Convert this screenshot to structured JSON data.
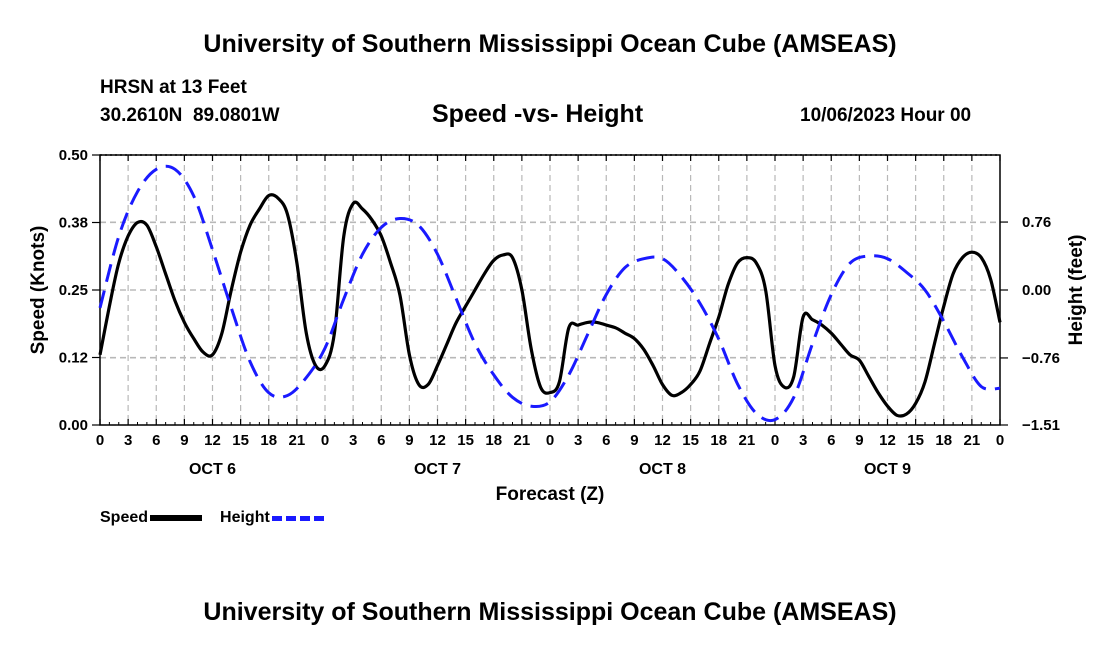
{
  "header": {
    "title": "University of Southern Mississippi Ocean Cube (AMSEAS)",
    "station": "HRSN at 13 Feet",
    "lat": "30.2610N",
    "lon": "89.0801W",
    "chart_title": "Speed -vs- Height",
    "date": "10/06/2023 Hour 00"
  },
  "footer": {
    "title": "University of Southern Mississippi Ocean Cube (AMSEAS)"
  },
  "legend": {
    "speed_label": "Speed",
    "height_label": "Height"
  },
  "colors": {
    "speed": "#000000",
    "height": "#1a1aff",
    "grid": "#b8b8b8"
  },
  "chart_data": {
    "type": "line",
    "title": "Speed -vs- Height",
    "xlabel": "Forecast (Z)",
    "ylabel": "Speed (Knots)",
    "y2label": "Height (feet)",
    "xlim": [
      0,
      96
    ],
    "ylim": [
      0,
      0.5
    ],
    "y2lim": [
      -1.51,
      1.51
    ],
    "x_tick_labels": [
      "0",
      "3",
      "6",
      "9",
      "12",
      "15",
      "18",
      "21",
      "0",
      "3",
      "6",
      "9",
      "12",
      "15",
      "18",
      "21",
      "0",
      "3",
      "6",
      "9",
      "12",
      "15",
      "18",
      "21",
      "0",
      "3",
      "6",
      "9",
      "12",
      "15",
      "18",
      "21",
      "0"
    ],
    "day_labels": [
      {
        "label": "OCT 6",
        "x": 12
      },
      {
        "label": "OCT 7",
        "x": 36
      },
      {
        "label": "OCT 8",
        "x": 60
      },
      {
        "label": "OCT 9",
        "x": 84
      }
    ],
    "y_ticks": [
      0.0,
      0.125,
      0.25,
      0.375,
      0.5
    ],
    "y_tick_labels": [
      "0.00",
      "0.12",
      "0.25",
      "0.38",
      "0.50"
    ],
    "y2_ticks": [
      0.76,
      0.0,
      -0.76,
      -1.51
    ],
    "y2_tick_labels": [
      "0.76",
      "0.00",
      "−0.76",
      "−1.51"
    ],
    "grid": true,
    "legend_position": "bottom-left",
    "series": [
      {
        "name": "Speed",
        "axis": "left",
        "style": "solid",
        "x": [
          0,
          1,
          2,
          3,
          4,
          5,
          6,
          7,
          8,
          9,
          10,
          11,
          12,
          13,
          14,
          15,
          16,
          17,
          18,
          19,
          20,
          21,
          22,
          23,
          24,
          25,
          26,
          27,
          28,
          29,
          30,
          31,
          32,
          33,
          34,
          35,
          36,
          37,
          38,
          39,
          40,
          41,
          42,
          43,
          44,
          45,
          46,
          47,
          48,
          49,
          50,
          51,
          52,
          53,
          54,
          55,
          56,
          57,
          58,
          59,
          60,
          61,
          62,
          63,
          64,
          65,
          66,
          67,
          68,
          69,
          70,
          71,
          72,
          73,
          74,
          75,
          76,
          77,
          78,
          79,
          80,
          81,
          82,
          83,
          84,
          85,
          86,
          87,
          88,
          89,
          90,
          91,
          92,
          93,
          94,
          95,
          96
        ],
        "values": [
          0.13,
          0.22,
          0.3,
          0.35,
          0.375,
          0.37,
          0.33,
          0.28,
          0.23,
          0.19,
          0.16,
          0.135,
          0.13,
          0.17,
          0.25,
          0.32,
          0.37,
          0.4,
          0.425,
          0.42,
          0.39,
          0.3,
          0.17,
          0.11,
          0.11,
          0.17,
          0.35,
          0.41,
          0.4,
          0.38,
          0.35,
          0.3,
          0.24,
          0.13,
          0.075,
          0.075,
          0.11,
          0.15,
          0.19,
          0.22,
          0.25,
          0.28,
          0.305,
          0.315,
          0.31,
          0.25,
          0.14,
          0.07,
          0.06,
          0.08,
          0.18,
          0.185,
          0.19,
          0.19,
          0.185,
          0.18,
          0.17,
          0.16,
          0.14,
          0.11,
          0.075,
          0.055,
          0.06,
          0.075,
          0.1,
          0.15,
          0.2,
          0.26,
          0.3,
          0.31,
          0.3,
          0.25,
          0.11,
          0.07,
          0.09,
          0.2,
          0.195,
          0.185,
          0.17,
          0.15,
          0.13,
          0.12,
          0.09,
          0.06,
          0.035,
          0.018,
          0.02,
          0.04,
          0.08,
          0.15,
          0.22,
          0.28,
          0.31,
          0.32,
          0.31,
          0.27,
          0.19
        ]
      },
      {
        "name": "Height",
        "axis": "right",
        "style": "dashed",
        "x": [
          0,
          2,
          4,
          6,
          8,
          10,
          12,
          14,
          16,
          18,
          20,
          22,
          24,
          26,
          28,
          30,
          32,
          34,
          36,
          38,
          40,
          42,
          44,
          46,
          48,
          50,
          52,
          54,
          56,
          58,
          60,
          62,
          64,
          66,
          68,
          70,
          72,
          74,
          76,
          78,
          80,
          82,
          84,
          86,
          88,
          90,
          92,
          94,
          96
        ],
        "values": [
          -0.2,
          0.6,
          1.1,
          1.35,
          1.35,
          1.05,
          0.45,
          -0.2,
          -0.8,
          -1.15,
          -1.18,
          -0.98,
          -0.65,
          -0.1,
          0.4,
          0.7,
          0.8,
          0.72,
          0.4,
          -0.1,
          -0.6,
          -0.95,
          -1.2,
          -1.3,
          -1.25,
          -0.95,
          -0.5,
          -0.05,
          0.25,
          0.35,
          0.35,
          0.15,
          -0.15,
          -0.55,
          -1.05,
          -1.38,
          -1.45,
          -1.2,
          -0.6,
          -0.05,
          0.3,
          0.38,
          0.35,
          0.2,
          0.0,
          -0.35,
          -0.75,
          -1.08,
          -1.1
        ]
      }
    ]
  }
}
